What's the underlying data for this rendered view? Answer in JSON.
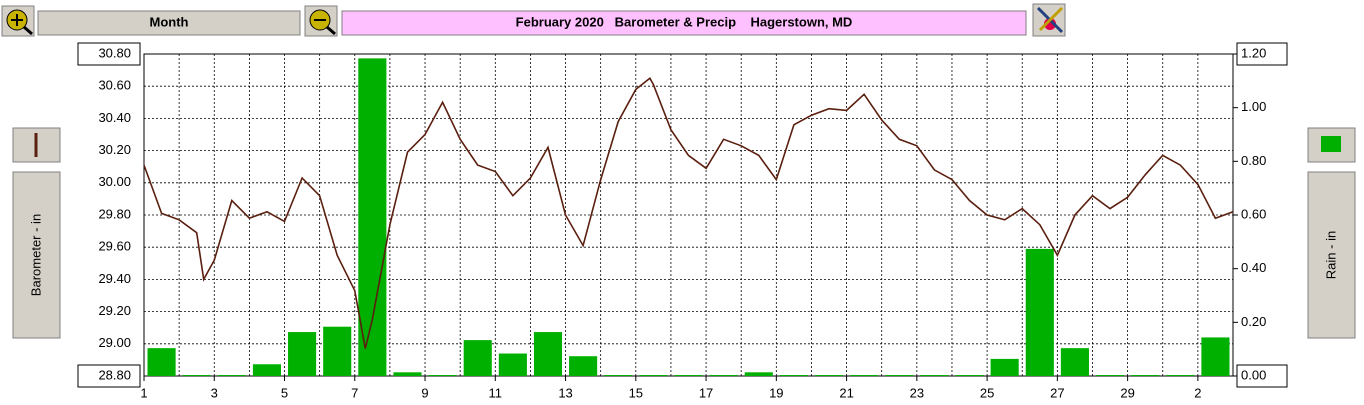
{
  "header": {
    "button": "Month",
    "title": "February 2020   Barometer & Precip    Hagerstown, MD"
  },
  "chart_data": {
    "type": "bar-line",
    "ylabel": "Barometer - in",
    "y2label": "Rain - in",
    "xlim": [
      1,
      32
    ],
    "xticks": [
      1,
      3,
      5,
      7,
      9,
      11,
      13,
      15,
      17,
      19,
      21,
      23,
      25,
      27,
      29,
      {
        "value": 31,
        "label": "2"
      }
    ],
    "ylim": [
      28.8,
      30.8
    ],
    "yticks": [
      {
        "value": 28.8,
        "label": "28.80"
      },
      {
        "value": 29,
        "label": "29.00"
      },
      {
        "value": 29.2,
        "label": "29.20"
      },
      {
        "value": 29.4,
        "label": "29.40"
      },
      {
        "value": 29.6,
        "label": "29.60"
      },
      {
        "value": 29.8,
        "label": "29.80"
      },
      {
        "value": 30,
        "label": "30.00"
      },
      {
        "value": 30.2,
        "label": "30.20"
      },
      {
        "value": 30.4,
        "label": "30.40"
      },
      {
        "value": 30.6,
        "label": "30.60"
      },
      {
        "value": 30.8,
        "label": "30.80"
      }
    ],
    "y2lim": [
      0,
      1.2
    ],
    "y2ticks": [
      {
        "value": 0,
        "label": "0.00"
      },
      {
        "value": 0.2,
        "label": "0.20"
      },
      {
        "value": 0.4,
        "label": "0.40"
      },
      {
        "value": 0.6,
        "label": "0.60"
      },
      {
        "value": 0.8,
        "label": "0.80"
      },
      {
        "value": 1,
        "label": "1.00"
      },
      {
        "value": 1.2,
        "label": "1.20"
      }
    ],
    "grid": true,
    "series": [
      {
        "type": "bar",
        "axis": "y2",
        "color": "#00b000",
        "x": [
          1,
          2,
          3,
          4,
          5,
          6,
          7,
          8,
          9,
          10,
          11,
          12,
          13,
          14,
          15,
          16,
          17,
          18,
          19,
          20,
          21,
          22,
          23,
          24,
          25,
          26,
          27,
          28,
          29,
          30,
          31
        ],
        "values": [
          0.1,
          0,
          0,
          0.04,
          0.16,
          0.18,
          1.18,
          0.01,
          0,
          0.13,
          0.08,
          0.16,
          0.07,
          0,
          0,
          0,
          0,
          0.01,
          0,
          0,
          0,
          0,
          0,
          0,
          0.06,
          0.47,
          0.1,
          0,
          0,
          0,
          0.14
        ]
      },
      {
        "type": "line",
        "color": "#5a1f0f",
        "x": [
          1,
          1.5,
          2,
          2.5,
          2.7,
          3,
          3.5,
          4,
          4.5,
          5,
          5.5,
          6,
          6.5,
          7,
          7.3,
          7.5,
          8,
          8.5,
          9,
          9.5,
          10,
          10.5,
          11,
          11.5,
          12,
          12.5,
          13,
          13.5,
          14,
          14.5,
          15,
          15.4,
          15.5,
          16,
          16.5,
          17,
          17.5,
          18,
          18.5,
          19,
          19.5,
          20,
          20.5,
          21,
          21.5,
          22,
          22.5,
          23,
          23.5,
          24,
          24.5,
          25,
          25.5,
          26,
          26.5,
          27,
          27.5,
          28,
          28.5,
          29,
          29.5,
          30,
          30.5,
          31,
          31.5,
          32
        ],
        "values": [
          30.11,
          29.81,
          29.77,
          29.69,
          29.4,
          29.52,
          29.89,
          29.78,
          29.82,
          29.76,
          30.03,
          29.92,
          29.55,
          29.33,
          28.97,
          29.15,
          29.74,
          30.19,
          30.3,
          30.5,
          30.27,
          30.11,
          30.07,
          29.92,
          30.03,
          30.22,
          29.8,
          29.61,
          30.02,
          30.38,
          30.58,
          30.65,
          30.61,
          30.33,
          30.17,
          30.09,
          30.27,
          30.23,
          30.17,
          30.02,
          30.36,
          30.42,
          30.46,
          30.45,
          30.55,
          30.39,
          30.27,
          30.23,
          30.08,
          30.02,
          29.89,
          29.8,
          29.77,
          29.84,
          29.74,
          29.55,
          29.8,
          29.92,
          29.84,
          29.91,
          30.05,
          30.17,
          30.11,
          29.99,
          29.78,
          29.82
        ]
      }
    ]
  }
}
